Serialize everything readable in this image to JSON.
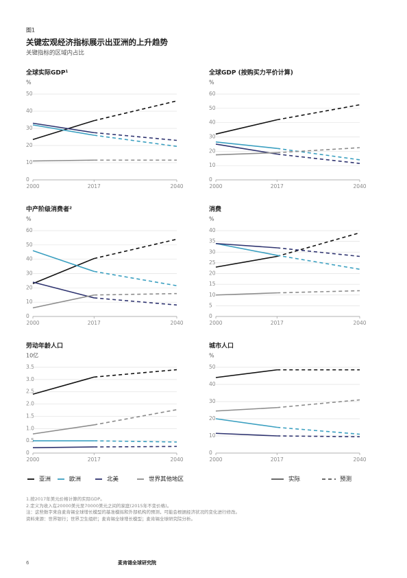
{
  "header": {
    "figure_label": "图1",
    "title": "关键宏观经济指标展示出亚洲的上升趋势",
    "subtitle": "关键指标的区域内占比"
  },
  "legend": {
    "items": [
      {
        "name": "亚洲",
        "color": "#111111"
      },
      {
        "name": "欧洲",
        "color": "#3a9fc0"
      },
      {
        "name": "北美",
        "color": "#2f3470"
      },
      {
        "name": "世界其他地区",
        "color": "#8c8c8c"
      }
    ],
    "actual": "实际",
    "forecast": "预测"
  },
  "chart_data": [
    {
      "type": "line",
      "title": "全球实际GDP¹",
      "y_label": "%",
      "x": [
        2000,
        2017,
        2040
      ],
      "xlim": [
        2000,
        2040
      ],
      "xticks": [
        2000,
        2017,
        2040
      ],
      "forecast_start": 2017,
      "ylim": [
        0,
        50
      ],
      "yticks": [
        0,
        10,
        20,
        30,
        40,
        50
      ],
      "grid": true,
      "series": [
        {
          "values": [
            23.5,
            34.5,
            46
          ]
        },
        {
          "values": [
            32,
            26,
            19.5
          ]
        },
        {
          "values": [
            33,
            27.5,
            23
          ]
        },
        {
          "values": [
            11,
            11.5,
            11.5
          ]
        }
      ]
    },
    {
      "type": "line",
      "title": "全球GDP (按购买力平价计算)",
      "y_label": "%",
      "x": [
        2000,
        2017,
        2040
      ],
      "xlim": [
        2000,
        2040
      ],
      "xticks": [
        2000,
        2017,
        2040
      ],
      "forecast_start": 2017,
      "ylim": [
        0,
        60
      ],
      "yticks": [
        0,
        10,
        20,
        30,
        40,
        50,
        60
      ],
      "grid": true,
      "series": [
        {
          "values": [
            32,
            42,
            52.5
          ]
        },
        {
          "values": [
            26.5,
            22,
            14
          ]
        },
        {
          "values": [
            25,
            18,
            11.5
          ]
        },
        {
          "values": [
            17.5,
            19,
            22.5
          ]
        }
      ]
    },
    {
      "type": "line",
      "title": "中产阶级消费者²",
      "y_label": "%",
      "x": [
        2000,
        2017,
        2040
      ],
      "xlim": [
        2000,
        2040
      ],
      "xticks": [
        2000,
        2017,
        2040
      ],
      "forecast_start": 2017,
      "ylim": [
        0,
        60
      ],
      "yticks": [
        0,
        10,
        20,
        30,
        40,
        50,
        60
      ],
      "grid": true,
      "series": [
        {
          "values": [
            23,
            40.5,
            54
          ]
        },
        {
          "values": [
            46,
            31.5,
            21.5
          ]
        },
        {
          "values": [
            24,
            13,
            8
          ]
        },
        {
          "values": [
            6,
            15,
            16
          ]
        }
      ]
    },
    {
      "type": "line",
      "title": "消费",
      "y_label": "%",
      "x": [
        2000,
        2017,
        2040
      ],
      "xlim": [
        2000,
        2040
      ],
      "xticks": [
        2000,
        2017,
        2040
      ],
      "forecast_start": 2017,
      "ylim": [
        0,
        40
      ],
      "yticks": [
        0,
        5,
        10,
        15,
        20,
        25,
        30,
        35,
        40
      ],
      "grid": true,
      "series": [
        {
          "values": [
            23,
            28,
            39
          ]
        },
        {
          "values": [
            34,
            28.5,
            22
          ]
        },
        {
          "values": [
            34,
            32,
            28
          ]
        },
        {
          "values": [
            10,
            11,
            12
          ]
        }
      ]
    },
    {
      "type": "line",
      "title": "劳动年龄人口",
      "y_label": "10亿",
      "x": [
        2000,
        2017,
        2040
      ],
      "xlim": [
        2000,
        2040
      ],
      "xticks": [
        2000,
        2017,
        2040
      ],
      "forecast_start": 2017,
      "ylim": [
        0,
        3.5
      ],
      "yticks": [
        0,
        0.5,
        {
          "value": 1,
          "label": "1.0"
        },
        1.5,
        {
          "value": 2,
          "label": "2.0"
        },
        2.5,
        {
          "value": 3,
          "label": "3.0"
        },
        3.5
      ],
      "grid": true,
      "series": [
        {
          "values": [
            2.4,
            3.1,
            3.4
          ]
        },
        {
          "values": [
            0.5,
            0.5,
            0.45
          ]
        },
        {
          "values": [
            0.22,
            0.25,
            0.27
          ]
        },
        {
          "values": [
            0.78,
            1.15,
            1.77
          ]
        }
      ]
    },
    {
      "type": "line",
      "title": "城市人口",
      "y_label": "%",
      "x": [
        2000,
        2017,
        2040
      ],
      "xlim": [
        2000,
        2040
      ],
      "xticks": [
        2000,
        2017,
        2040
      ],
      "forecast_start": 2017,
      "ylim": [
        0,
        50
      ],
      "yticks": [
        0,
        10,
        20,
        30,
        40,
        50
      ],
      "grid": true,
      "series": [
        {
          "values": [
            44,
            48.5,
            48.5
          ]
        },
        {
          "values": [
            20,
            15,
            11
          ]
        },
        {
          "values": [
            11.5,
            10,
            9.5
          ]
        },
        {
          "values": [
            24.5,
            26.5,
            31
          ]
        }
      ]
    }
  ],
  "notes": [
    "1.按2017年美元价格计算的实际GDP。",
    "2.定义为收入在20000美元至70000美元之间的家庭(2015年不变价格)。",
    "注：这些数字来自麦肯锡全球增长模型的基准模拟和外部机构的预测，可能会根据经济状况的变化进行修改。",
    "资料来源：世界银行；世界卫生组织；麦肯锡全球增长模型；麦肯锡全球研究院分析。"
  ],
  "footer": {
    "page": "6",
    "publisher": "麦肯锡全球研究院"
  }
}
